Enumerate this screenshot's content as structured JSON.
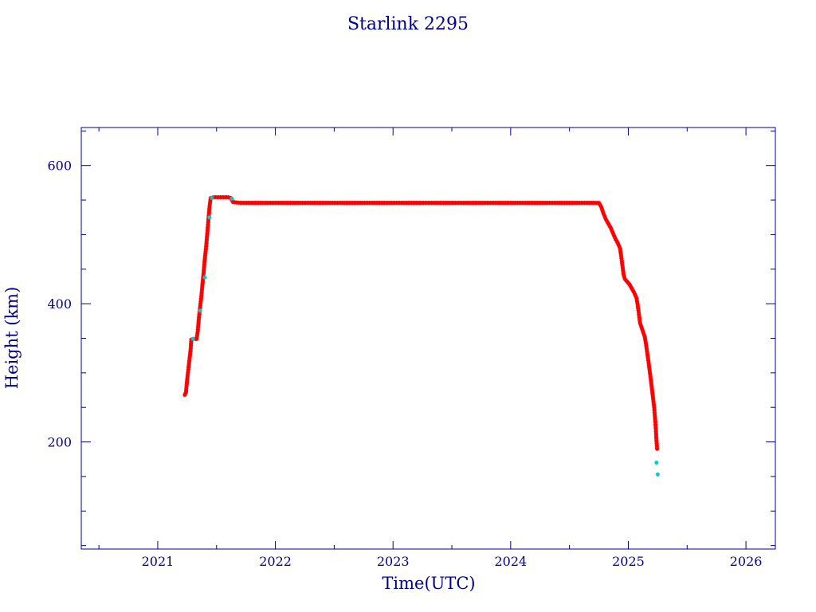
{
  "chart_data": {
    "type": "scatter",
    "title": "Starlink 2295",
    "xlabel": "Time(UTC)",
    "ylabel": "Height (km)",
    "xlim": [
      2020.35,
      2026.25
    ],
    "ylim": [
      45,
      655
    ],
    "xticks": [
      2021,
      2022,
      2023,
      2024,
      2025,
      2026
    ],
    "xtick_labels": [
      "2021",
      "2022",
      "2023",
      "2024",
      "2025",
      "2026"
    ],
    "yticks": [
      200,
      400,
      600
    ],
    "ytick_labels": [
      "200",
      "400",
      "600"
    ],
    "grid": false,
    "colors": {
      "axes": "#00008b",
      "main_points": "#ff0000",
      "secondary_points": "#00cccc",
      "text": "#00008b"
    },
    "series": [
      {
        "marker": "star",
        "color": "#ff0000",
        "points": [
          [
            2021.23,
            268
          ],
          [
            2021.24,
            272
          ],
          [
            2021.25,
            290
          ],
          [
            2021.26,
            305
          ],
          [
            2021.27,
            320
          ],
          [
            2021.28,
            335
          ],
          [
            2021.285,
            348
          ],
          [
            2021.3,
            349
          ],
          [
            2021.32,
            349
          ],
          [
            2021.33,
            349
          ],
          [
            2021.34,
            360
          ],
          [
            2021.35,
            380
          ],
          [
            2021.36,
            395
          ],
          [
            2021.37,
            410
          ],
          [
            2021.38,
            428
          ],
          [
            2021.39,
            445
          ],
          [
            2021.4,
            465
          ],
          [
            2021.41,
            480
          ],
          [
            2021.42,
            500
          ],
          [
            2021.43,
            520
          ],
          [
            2021.44,
            540
          ],
          [
            2021.45,
            553
          ],
          [
            2021.48,
            554
          ],
          [
            2021.52,
            554
          ],
          [
            2021.56,
            554
          ],
          [
            2021.6,
            554
          ],
          [
            2021.62,
            553
          ],
          [
            2021.64,
            547
          ],
          [
            2021.7,
            546
          ],
          [
            2021.8,
            546
          ],
          [
            2021.9,
            546
          ],
          [
            2022.0,
            546
          ],
          [
            2022.1,
            546
          ],
          [
            2022.2,
            546
          ],
          [
            2022.3,
            546
          ],
          [
            2022.4,
            546
          ],
          [
            2022.5,
            546
          ],
          [
            2022.6,
            546
          ],
          [
            2022.7,
            546
          ],
          [
            2022.8,
            546
          ],
          [
            2022.9,
            546
          ],
          [
            2023.0,
            546
          ],
          [
            2023.1,
            546
          ],
          [
            2023.2,
            546
          ],
          [
            2023.3,
            546
          ],
          [
            2023.4,
            546
          ],
          [
            2023.5,
            546
          ],
          [
            2023.6,
            546
          ],
          [
            2023.7,
            546
          ],
          [
            2023.8,
            546
          ],
          [
            2023.9,
            546
          ],
          [
            2024.0,
            546
          ],
          [
            2024.1,
            546
          ],
          [
            2024.2,
            546
          ],
          [
            2024.3,
            546
          ],
          [
            2024.4,
            546
          ],
          [
            2024.5,
            546
          ],
          [
            2024.6,
            546
          ],
          [
            2024.7,
            546
          ],
          [
            2024.75,
            546
          ],
          [
            2024.77,
            540
          ],
          [
            2024.79,
            530
          ],
          [
            2024.81,
            522
          ],
          [
            2024.83,
            516
          ],
          [
            2024.85,
            510
          ],
          [
            2024.87,
            502
          ],
          [
            2024.89,
            494
          ],
          [
            2024.91,
            488
          ],
          [
            2024.93,
            480
          ],
          [
            2024.94,
            468
          ],
          [
            2024.95,
            455
          ],
          [
            2024.96,
            442
          ],
          [
            2024.97,
            436
          ],
          [
            2024.99,
            432
          ],
          [
            2025.01,
            428
          ],
          [
            2025.03,
            422
          ],
          [
            2025.05,
            416
          ],
          [
            2025.07,
            408
          ],
          [
            2025.08,
            398
          ],
          [
            2025.09,
            385
          ],
          [
            2025.1,
            372
          ],
          [
            2025.12,
            362
          ],
          [
            2025.14,
            352
          ],
          [
            2025.15,
            342
          ],
          [
            2025.16,
            330
          ],
          [
            2025.17,
            318
          ],
          [
            2025.18,
            305
          ],
          [
            2025.19,
            292
          ],
          [
            2025.2,
            278
          ],
          [
            2025.21,
            264
          ],
          [
            2025.22,
            250
          ],
          [
            2025.23,
            228
          ],
          [
            2025.235,
            215
          ],
          [
            2025.24,
            200
          ],
          [
            2025.245,
            190
          ]
        ]
      },
      {
        "marker": "star",
        "color": "#00cccc",
        "points": [
          [
            2021.3,
            349
          ],
          [
            2021.36,
            390
          ],
          [
            2021.4,
            438
          ],
          [
            2021.44,
            525
          ],
          [
            2021.46,
            553
          ],
          [
            2021.63,
            552
          ],
          [
            2025.24,
            170
          ],
          [
            2025.25,
            153
          ]
        ]
      }
    ]
  }
}
